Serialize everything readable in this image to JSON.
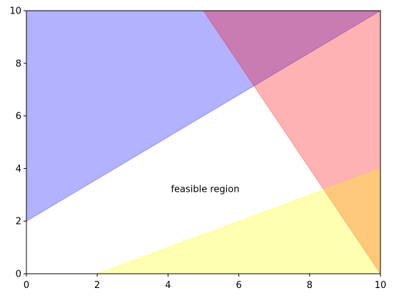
{
  "chart_data": {
    "type": "area",
    "title": "",
    "xlabel": "",
    "ylabel": "",
    "xlim": [
      0,
      10
    ],
    "ylim": [
      0,
      10
    ],
    "grid": false,
    "x_ticks": [
      "0",
      "2",
      "4",
      "6",
      "8",
      "10"
    ],
    "y_ticks": [
      "0",
      "2",
      "4",
      "6",
      "8",
      "10"
    ],
    "regions": [
      {
        "color": "#0000ff",
        "opacity": 0.3,
        "vertices": [
          [
            0,
            2
          ],
          [
            10,
            10
          ],
          [
            0,
            10
          ]
        ]
      },
      {
        "color": "#ff0000",
        "opacity": 0.3,
        "vertices": [
          [
            5,
            10
          ],
          [
            10,
            10
          ],
          [
            10,
            0
          ]
        ]
      },
      {
        "color": "#ffff00",
        "opacity": 0.3,
        "vertices": [
          [
            2,
            0
          ],
          [
            10,
            0
          ],
          [
            10,
            4
          ]
        ]
      }
    ],
    "annotations": [
      {
        "text": "feasible region",
        "x": 5.05,
        "y": 3.1
      }
    ]
  }
}
